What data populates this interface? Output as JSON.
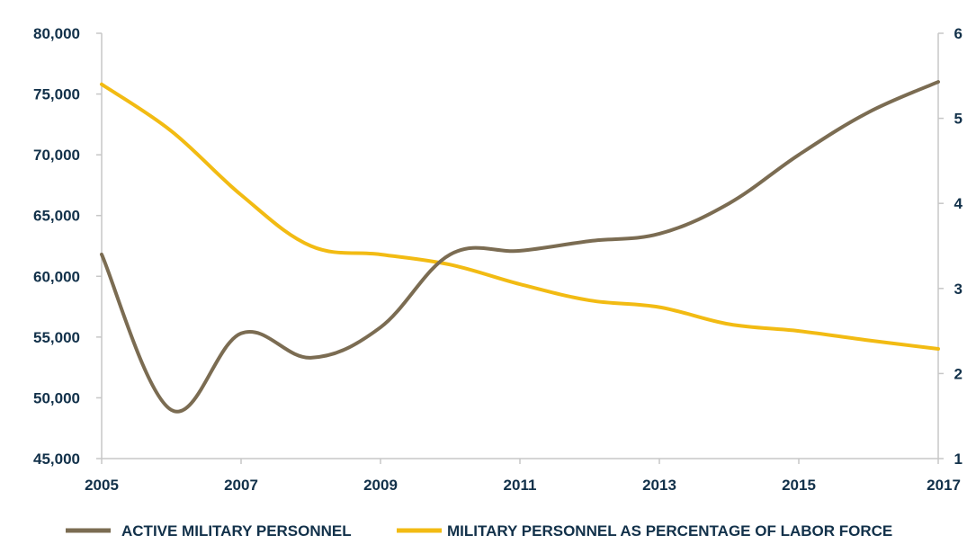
{
  "chart_data": {
    "type": "line",
    "title": "",
    "xlabel": "",
    "ylabel": "",
    "y2label": "",
    "x": [
      2005,
      2006,
      2007,
      2008,
      2009,
      2010,
      2011,
      2012,
      2013,
      2014,
      2015,
      2016,
      2017
    ],
    "xticks": [
      "2005",
      "2007",
      "2009",
      "2011",
      "2013",
      "2015",
      "2017"
    ],
    "xlim": [
      2005,
      2017
    ],
    "ylim": [
      45000,
      80000
    ],
    "yticks": [
      "45,000",
      "50,000",
      "55,000",
      "60,000",
      "65,000",
      "70,000",
      "75,000",
      "80,000"
    ],
    "y2lim": [
      1,
      6
    ],
    "y2ticks": [
      "1",
      "2",
      "3",
      "4",
      "5",
      "6"
    ],
    "grid": false,
    "legend_position": "bottom",
    "series": [
      {
        "name": "ACTIVE MILITARY PERSONNEL",
        "axis": "left",
        "color": "#7b6c52",
        "values": [
          61800,
          49000,
          55300,
          53300,
          55800,
          61800,
          62100,
          62900,
          63500,
          66000,
          70000,
          73500,
          76000
        ]
      },
      {
        "name": "MILITARY PERSONNEL AS PERCENTAGE OF LABOR FORCE",
        "axis": "right",
        "color": "#f2bb13",
        "values": [
          5.4,
          4.85,
          4.1,
          3.5,
          3.4,
          3.28,
          3.05,
          2.86,
          2.78,
          2.58,
          2.5,
          2.39,
          2.29
        ]
      }
    ]
  }
}
